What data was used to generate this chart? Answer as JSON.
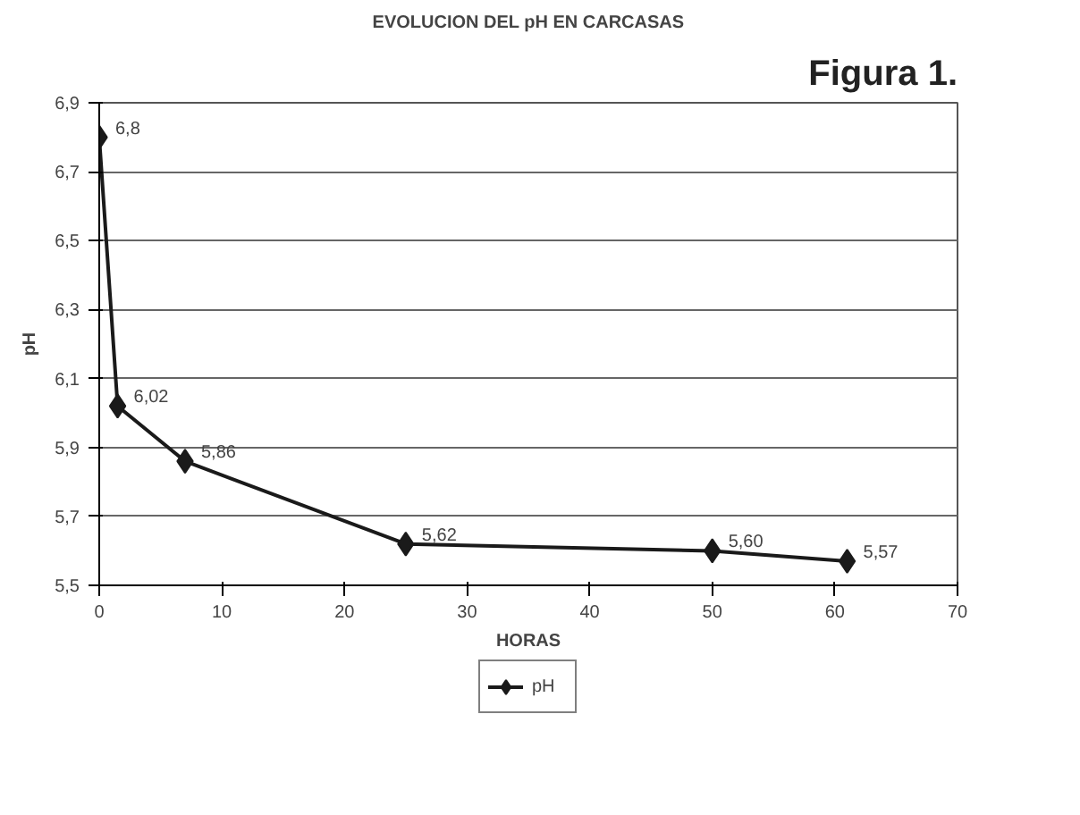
{
  "chart_data": {
    "type": "line",
    "title": "EVOLUCION DEL pH EN CARCASAS",
    "xlabel": "HORAS",
    "ylabel": "pH",
    "annotations": [
      "Figura 1."
    ],
    "x": [
      0,
      1.5,
      7,
      25,
      50,
      61
    ],
    "series": [
      {
        "name": "pH",
        "color": "#1a1a1a",
        "values": [
          6.8,
          6.02,
          5.86,
          5.62,
          5.6,
          5.57
        ],
        "value_labels": [
          "6,8",
          "6,02",
          "5,86",
          "5,62",
          "5,60",
          "5,57"
        ]
      }
    ],
    "xlim": [
      0,
      70
    ],
    "xticks": [
      0,
      10,
      20,
      30,
      40,
      50,
      60,
      70
    ],
    "ylim": [
      5.5,
      6.9
    ],
    "yticks": [
      {
        "value": 5.5,
        "label": "5,5"
      },
      {
        "value": 5.7,
        "label": "5,7"
      },
      {
        "value": 5.9,
        "label": "5,9"
      },
      {
        "value": 6.1,
        "label": "6,1"
      },
      {
        "value": 6.3,
        "label": "6,3"
      },
      {
        "value": 6.5,
        "label": "6,5"
      },
      {
        "value": 6.7,
        "label": "6,7"
      },
      {
        "value": 6.9,
        "label": "6,9"
      }
    ],
    "grid": "y",
    "legend": "bottom",
    "marker": "diamond",
    "line_style": "solid"
  }
}
